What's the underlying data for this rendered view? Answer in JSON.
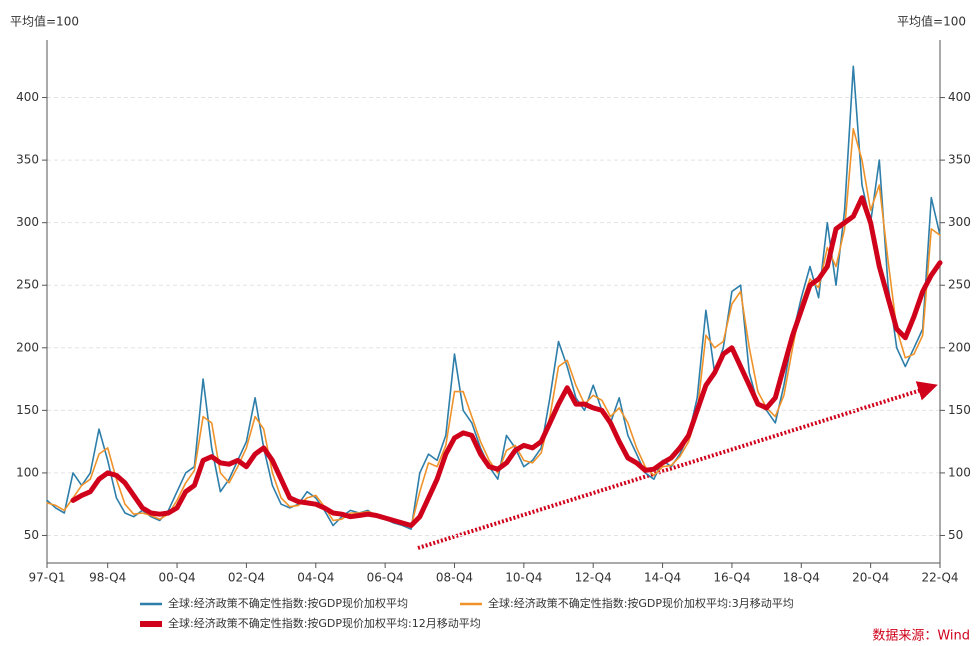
{
  "chart_data": {
    "type": "line",
    "y_label": "平均值=100",
    "y2_label": "平均值=100",
    "source": "数据来源：Wind",
    "categories": [
      "97-Q1",
      null,
      null,
      null,
      null,
      null,
      null,
      "98-Q4",
      null,
      null,
      null,
      null,
      null,
      null,
      null,
      "00-Q4",
      null,
      null,
      null,
      null,
      null,
      null,
      null,
      "02-Q4",
      null,
      null,
      null,
      null,
      null,
      null,
      null,
      "04-Q4",
      null,
      null,
      null,
      null,
      null,
      null,
      null,
      "06-Q4",
      null,
      null,
      null,
      null,
      null,
      null,
      null,
      "08-Q4",
      null,
      null,
      null,
      null,
      null,
      null,
      null,
      "10-Q4",
      null,
      null,
      null,
      null,
      null,
      null,
      null,
      "12-Q4",
      null,
      null,
      null,
      null,
      null,
      null,
      null,
      "14-Q4",
      null,
      null,
      null,
      null,
      null,
      null,
      null,
      "16-Q4",
      null,
      null,
      null,
      null,
      null,
      null,
      null,
      "18-Q4",
      null,
      null,
      null,
      null,
      null,
      null,
      null,
      "20-Q4",
      null,
      null,
      null,
      null,
      null,
      null,
      null,
      "22-Q4"
    ],
    "series": [
      {
        "name": "全球:经济政策不确定性指数:按GDP现价加权平均",
        "color": "#2e7eaa",
        "width": 1.6,
        "values": [
          78,
          72,
          68,
          100,
          90,
          100,
          135,
          110,
          80,
          68,
          65,
          70,
          65,
          62,
          70,
          85,
          100,
          105,
          175,
          120,
          85,
          95,
          110,
          125,
          160,
          120,
          90,
          75,
          72,
          75,
          85,
          80,
          70,
          58,
          65,
          70,
          68,
          70,
          65,
          63,
          60,
          58,
          55,
          100,
          115,
          110,
          130,
          195,
          150,
          140,
          120,
          105,
          95,
          130,
          120,
          105,
          110,
          120,
          160,
          205,
          185,
          160,
          150,
          170,
          150,
          140,
          160,
          130,
          115,
          100,
          95,
          110,
          105,
          115,
          130,
          160,
          230,
          180,
          200,
          245,
          250,
          180,
          155,
          150,
          140,
          170,
          210,
          240,
          265,
          240,
          300,
          250,
          310,
          425,
          330,
          300,
          350,
          250,
          200,
          185,
          200,
          215,
          320,
          290
        ]
      },
      {
        "name": "全球:经济政策不确定性指数:按GDP现价加权平均:3月移动平均",
        "color": "#f0922a",
        "width": 1.6,
        "values": [
          76,
          74,
          70,
          80,
          90,
          95,
          115,
          120,
          95,
          75,
          67,
          68,
          66,
          63,
          67,
          78,
          92,
          102,
          145,
          140,
          100,
          92,
          105,
          120,
          145,
          135,
          100,
          80,
          73,
          74,
          80,
          82,
          73,
          62,
          63,
          68,
          68,
          69,
          67,
          64,
          61,
          59,
          57,
          85,
          108,
          105,
          122,
          165,
          165,
          145,
          125,
          110,
          100,
          118,
          122,
          110,
          108,
          116,
          145,
          185,
          190,
          170,
          155,
          162,
          158,
          145,
          152,
          140,
          120,
          105,
          98,
          105,
          106,
          113,
          125,
          148,
          210,
          200,
          205,
          235,
          245,
          200,
          165,
          152,
          145,
          162,
          200,
          235,
          255,
          248,
          280,
          265,
          295,
          375,
          350,
          310,
          330,
          270,
          215,
          192,
          195,
          210,
          295,
          290
        ]
      },
      {
        "name": "全球:经济政策不确定性指数:按GDP现价加权平均:12月移动平均",
        "color": "#d0021b",
        "width": 5,
        "values": [
          null,
          null,
          null,
          78,
          82,
          85,
          95,
          100,
          98,
          92,
          82,
          72,
          68,
          67,
          68,
          72,
          85,
          90,
          110,
          113,
          108,
          107,
          110,
          105,
          115,
          120,
          110,
          95,
          80,
          77,
          76,
          75,
          72,
          68,
          67,
          65,
          66,
          67,
          66,
          64,
          62,
          60,
          58,
          65,
          80,
          95,
          115,
          128,
          132,
          130,
          115,
          105,
          103,
          108,
          118,
          122,
          120,
          125,
          140,
          155,
          168,
          155,
          155,
          152,
          150,
          140,
          125,
          112,
          108,
          102,
          103,
          108,
          112,
          120,
          130,
          150,
          170,
          180,
          195,
          200,
          185,
          170,
          155,
          152,
          160,
          185,
          210,
          230,
          250,
          255,
          265,
          295,
          300,
          305,
          320,
          300,
          265,
          240,
          215,
          208,
          225,
          245,
          258,
          268
        ]
      }
    ],
    "ylim": [
      28,
      446
    ],
    "yticks": [
      50,
      100,
      150,
      200,
      250,
      300,
      350,
      400
    ],
    "y2lim": [
      28,
      446
    ],
    "y2ticks": [
      50,
      100,
      150,
      200,
      250,
      300,
      350,
      400
    ],
    "grid": true
  }
}
